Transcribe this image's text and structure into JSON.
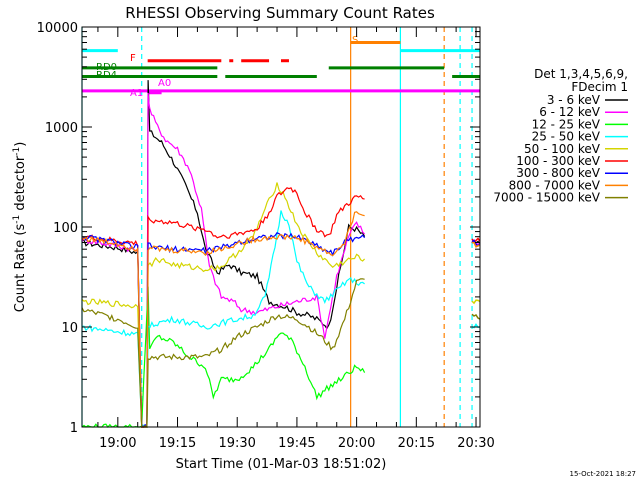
{
  "chart_data": {
    "type": "line",
    "title": "RHESSI Observing Summary Count Rates",
    "xlabel": "Start Time (01-Mar-03 18:51:02)",
    "ylabel_main": "Count Rate (s",
    "ylabel_sup1": "-1",
    "ylabel_mid": " detector",
    "ylabel_sup2": "-1",
    "ylabel_end": ")",
    "footer": "15-Oct-2021 18:27",
    "x_ticks": [
      "19:00",
      "19:15",
      "19:30",
      "19:45",
      "20:00",
      "20:15",
      "20:30"
    ],
    "x_tick_minutes": [
      0,
      15,
      30,
      45,
      60,
      75,
      90
    ],
    "xlim_minutes": [
      -9,
      91
    ],
    "y_scale": "log",
    "ylim": [
      1,
      10000
    ],
    "y_ticks": [
      "1",
      "10",
      "100",
      "1000",
      "10000"
    ],
    "y_tick_values": [
      1,
      10,
      100,
      1000,
      10000
    ],
    "legend_header": [
      "Det 1,3,4,5,6,9,",
      "FDecim 1"
    ],
    "legend_placement": "right",
    "series": [
      {
        "name": "3 - 6 keV",
        "color": "#000000",
        "points": [
          [
            -9,
            70
          ],
          [
            0,
            62
          ],
          [
            5,
            55
          ],
          [
            6,
            0.6
          ],
          [
            7.3,
            0.6
          ],
          [
            7.6,
            3000
          ],
          [
            8,
            900
          ],
          [
            11,
            700
          ],
          [
            14,
            450
          ],
          [
            17,
            260
          ],
          [
            20,
            140
          ],
          [
            22,
            60
          ],
          [
            25,
            35
          ],
          [
            28,
            42
          ],
          [
            31,
            35
          ],
          [
            35,
            32
          ],
          [
            38,
            18
          ],
          [
            42,
            16
          ],
          [
            45,
            14
          ],
          [
            48,
            13
          ],
          [
            50,
            12
          ],
          [
            53,
            10
          ],
          [
            56,
            40
          ],
          [
            58,
            100
          ],
          [
            60,
            95
          ],
          [
            62,
            80
          ]
        ],
        "gap_after": [
          62
        ],
        "points2": [
          [
            89,
            70
          ],
          [
            91,
            68
          ]
        ]
      },
      {
        "name": "6 - 12 keV",
        "color": "#ff00ff",
        "points": [
          [
            -9,
            75
          ],
          [
            0,
            65
          ],
          [
            5,
            58
          ],
          [
            6,
            1
          ],
          [
            7.3,
            1
          ],
          [
            7.6,
            2200
          ],
          [
            8,
            1500
          ],
          [
            10,
            1000
          ],
          [
            12,
            750
          ],
          [
            15,
            600
          ],
          [
            18,
            380
          ],
          [
            21,
            150
          ],
          [
            23,
            40
          ],
          [
            26,
            20
          ],
          [
            29,
            18
          ],
          [
            31,
            15
          ],
          [
            35,
            14
          ],
          [
            40,
            16
          ],
          [
            45,
            18
          ],
          [
            50,
            20
          ],
          [
            52,
            8
          ],
          [
            55,
            32
          ],
          [
            58,
            80
          ],
          [
            60,
            110
          ],
          [
            62,
            85
          ]
        ],
        "gap_after": [
          62
        ],
        "points2": [
          [
            89,
            72
          ],
          [
            91,
            70
          ]
        ]
      },
      {
        "name": "12 - 25 keV",
        "color": "#00ff00",
        "points": [
          [
            -9,
            1
          ],
          [
            5,
            1
          ],
          [
            6,
            1
          ],
          [
            7.6,
            25
          ],
          [
            8,
            6
          ],
          [
            10,
            8
          ],
          [
            14,
            7
          ],
          [
            18,
            5
          ],
          [
            22,
            4
          ],
          [
            24,
            2
          ],
          [
            26,
            3
          ],
          [
            30,
            3
          ],
          [
            34,
            4
          ],
          [
            38,
            6
          ],
          [
            41,
            9
          ],
          [
            44,
            7
          ],
          [
            47,
            4
          ],
          [
            50,
            2
          ],
          [
            53,
            2.5
          ],
          [
            56,
            3
          ],
          [
            60,
            4
          ],
          [
            62,
            3.5
          ]
        ],
        "gap_after": [
          62
        ],
        "points2": []
      },
      {
        "name": "25 - 50 keV",
        "color": "#00ffff",
        "points": [
          [
            -9,
            10
          ],
          [
            0,
            9
          ],
          [
            5,
            8.5
          ],
          [
            6,
            1
          ],
          [
            7.3,
            1
          ],
          [
            7.6,
            10
          ],
          [
            10,
            11
          ],
          [
            14,
            12
          ],
          [
            18,
            11
          ],
          [
            22,
            10
          ],
          [
            26,
            11
          ],
          [
            30,
            12
          ],
          [
            34,
            13
          ],
          [
            37,
            20
          ],
          [
            39,
            50
          ],
          [
            41,
            140
          ],
          [
            43,
            110
          ],
          [
            45,
            45
          ],
          [
            48,
            25
          ],
          [
            52,
            18
          ],
          [
            56,
            25
          ],
          [
            58,
            30
          ],
          [
            60,
            28
          ],
          [
            62,
            27
          ]
        ],
        "gap_after": [
          62
        ],
        "points2": [
          [
            89,
            10
          ],
          [
            91,
            10
          ]
        ]
      },
      {
        "name": "50 - 100 keV",
        "color": "#d4d400",
        "points": [
          [
            -9,
            18
          ],
          [
            0,
            17
          ],
          [
            5,
            16
          ],
          [
            6,
            1
          ],
          [
            7.3,
            1
          ],
          [
            7.6,
            40
          ],
          [
            10,
            48
          ],
          [
            14,
            42
          ],
          [
            18,
            40
          ],
          [
            22,
            38
          ],
          [
            26,
            40
          ],
          [
            30,
            55
          ],
          [
            34,
            80
          ],
          [
            37,
            150
          ],
          [
            40,
            270
          ],
          [
            42,
            200
          ],
          [
            44,
            130
          ],
          [
            46,
            90
          ],
          [
            50,
            55
          ],
          [
            54,
            40
          ],
          [
            57,
            45
          ],
          [
            60,
            50
          ],
          [
            62,
            48
          ]
        ],
        "gap_after": [
          62
        ],
        "points2": [
          [
            89,
            18
          ],
          [
            91,
            18
          ]
        ]
      },
      {
        "name": "100 - 300 keV",
        "color": "#ff0000",
        "points": [
          [
            -9,
            80
          ],
          [
            0,
            72
          ],
          [
            5,
            68
          ],
          [
            6,
            1
          ],
          [
            7.3,
            1
          ],
          [
            7.6,
            120
          ],
          [
            10,
            115
          ],
          [
            14,
            110
          ],
          [
            18,
            100
          ],
          [
            22,
            95
          ],
          [
            25,
            80
          ],
          [
            30,
            85
          ],
          [
            35,
            95
          ],
          [
            38,
            140
          ],
          [
            40,
            200
          ],
          [
            43,
            250
          ],
          [
            45,
            220
          ],
          [
            47,
            140
          ],
          [
            50,
            95
          ],
          [
            53,
            80
          ],
          [
            55,
            130
          ],
          [
            57,
            160
          ],
          [
            60,
            200
          ],
          [
            62,
            190
          ]
        ],
        "gap_after": [
          62
        ],
        "points2": [
          [
            89,
            75
          ],
          [
            91,
            72
          ]
        ]
      },
      {
        "name": "300 - 800 keV",
        "color": "#0000ff",
        "points": [
          [
            -9,
            80
          ],
          [
            0,
            70
          ],
          [
            5,
            62
          ],
          [
            6,
            1
          ],
          [
            7.3,
            1
          ],
          [
            7.6,
            65
          ],
          [
            10,
            62
          ],
          [
            14,
            60
          ],
          [
            18,
            60
          ],
          [
            22,
            58
          ],
          [
            26,
            62
          ],
          [
            30,
            70
          ],
          [
            35,
            78
          ],
          [
            40,
            82
          ],
          [
            45,
            80
          ],
          [
            48,
            72
          ],
          [
            51,
            62
          ],
          [
            54,
            55
          ],
          [
            57,
            70
          ],
          [
            60,
            80
          ],
          [
            62,
            78
          ]
        ],
        "gap_after": [
          62
        ],
        "points2": [
          [
            89,
            70
          ],
          [
            91,
            68
          ]
        ]
      },
      {
        "name": "800 - 7000 keV",
        "color": "#ff8000",
        "points": [
          [
            -9,
            78
          ],
          [
            0,
            68
          ],
          [
            5,
            60
          ],
          [
            6,
            1
          ],
          [
            7.3,
            1
          ],
          [
            7.6,
            62
          ],
          [
            10,
            60
          ],
          [
            14,
            58
          ],
          [
            18,
            58
          ],
          [
            22,
            56
          ],
          [
            26,
            60
          ],
          [
            30,
            68
          ],
          [
            35,
            76
          ],
          [
            40,
            80
          ],
          [
            45,
            78
          ],
          [
            48,
            70
          ],
          [
            51,
            60
          ],
          [
            54,
            52
          ],
          [
            57,
            70
          ],
          [
            60,
            150
          ],
          [
            62,
            130
          ]
        ],
        "gap_after": [
          62
        ],
        "points2": [
          [
            89,
            68
          ],
          [
            91,
            66
          ]
        ]
      },
      {
        "name": "7000 - 15000 keV",
        "color": "#808000",
        "points": [
          [
            -9,
            15
          ],
          [
            0,
            12
          ],
          [
            5,
            10
          ],
          [
            6,
            1
          ],
          [
            7.3,
            1
          ],
          [
            7.6,
            5
          ],
          [
            10,
            5
          ],
          [
            14,
            5
          ],
          [
            18,
            5
          ],
          [
            22,
            5
          ],
          [
            26,
            6
          ],
          [
            30,
            8
          ],
          [
            35,
            10
          ],
          [
            40,
            13
          ],
          [
            45,
            12
          ],
          [
            48,
            10
          ],
          [
            51,
            8
          ],
          [
            54,
            6
          ],
          [
            57,
            12
          ],
          [
            60,
            28
          ],
          [
            62,
            30
          ]
        ],
        "gap_after": [
          62
        ],
        "points2": [
          [
            89,
            13
          ],
          [
            91,
            12
          ]
        ]
      }
    ],
    "flag_bars": [
      {
        "label": "",
        "color": "#00ffff",
        "y_value": 5800,
        "segments": [
          [
            -9,
            0
          ],
          [
            71,
            91
          ]
        ]
      },
      {
        "label": "S",
        "color": "#ff8000",
        "y_value": 7000,
        "segments": [
          [
            58.5,
            71
          ]
        ]
      },
      {
        "label": "F",
        "color": "#ff0000",
        "y_value": 4600,
        "segments": [
          [
            7.5,
            26
          ],
          [
            28,
            29
          ],
          [
            31,
            38
          ],
          [
            41,
            43
          ]
        ]
      },
      {
        "label": "RD0",
        "color": "#008000",
        "y_value": 3900,
        "segments": [
          [
            -9,
            25
          ],
          [
            53,
            82
          ]
        ]
      },
      {
        "label": "RD4",
        "color": "#008000",
        "y_value": 3200,
        "segments": [
          [
            -9,
            25
          ],
          [
            27,
            50
          ],
          [
            84,
            91
          ]
        ]
      },
      {
        "label": "A1",
        "color": "#ff00ff",
        "y_value": 2300,
        "segments": [
          [
            -9,
            91
          ]
        ]
      },
      {
        "label": "A0",
        "color": "#ff00ff",
        "y_value": 2200,
        "segments": [
          [
            7.5,
            11
          ]
        ]
      }
    ],
    "vlines": [
      {
        "x": -9,
        "color": "#00ffff",
        "style": "solid"
      },
      {
        "x": 6,
        "color": "#00ffff",
        "style": "dashed"
      },
      {
        "x": 58.5,
        "color": "#ff8000",
        "style": "solid"
      },
      {
        "x": 71,
        "color": "#00ffff",
        "style": "solid"
      },
      {
        "x": 82,
        "color": "#ff8000",
        "style": "dashed"
      },
      {
        "x": 86,
        "color": "#00ffff",
        "style": "dashed"
      },
      {
        "x": 89,
        "color": "#00ffff",
        "style": "dashed"
      }
    ],
    "grid": false
  }
}
